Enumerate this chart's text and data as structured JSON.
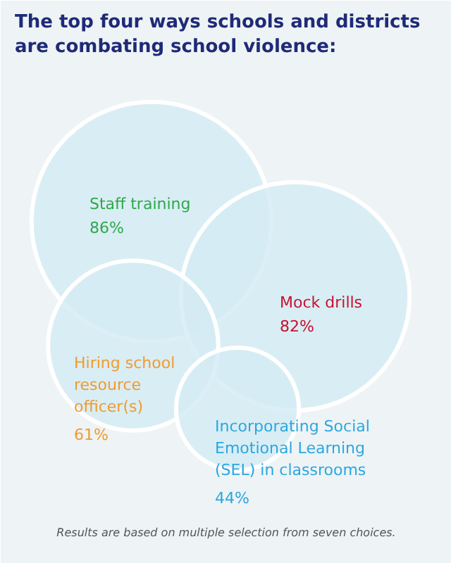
{
  "chart_data": {
    "type": "other",
    "title": "The top four ways schools and districts\nare combating school violence:",
    "categories": [
      "Staff training",
      "Mock drills",
      "Hiring school\nresource\nofficer(s)",
      "Incorporating Social\nEmotional Learning\n(SEL) in classrooms"
    ],
    "values": [
      86,
      82,
      61,
      44
    ],
    "colors": [
      "#d3ebf4",
      "#d3ebf4",
      "#d3ebf4",
      "#d3ebf4"
    ],
    "value_labels": [
      "86%",
      "82%",
      "61%",
      "44%"
    ],
    "annotations": [
      "Results are based on multiple selection from seven choices."
    ]
  }
}
